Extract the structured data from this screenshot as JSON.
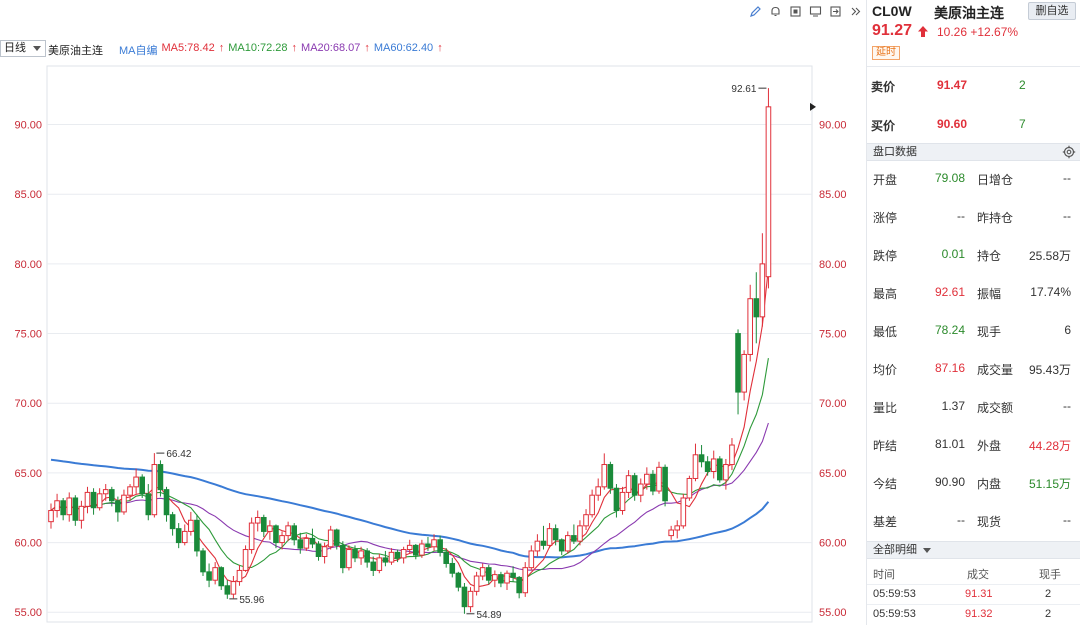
{
  "toolbar": {
    "icons": [
      "pen-icon",
      "bell-icon",
      "copy-icon",
      "screen-icon",
      "export-icon",
      "expand-icon"
    ]
  },
  "chart_header": {
    "period": "日线",
    "symbol": "美原油主连",
    "ma_mode": "MA自编",
    "ma5": "MA5:78.42",
    "ma10": "MA10:72.28",
    "ma20": "MA20:68.07",
    "ma60": "MA60:62.40"
  },
  "colors": {
    "up": "#e0303a",
    "down": "#1a8a3a",
    "ma5": "#e0303a",
    "ma10": "#2e9a3a",
    "ma20": "#8a3ab0",
    "ma60": "#3a7bd5",
    "axis_text": "#c82a36",
    "grid": "#e9ecf0"
  },
  "chart_data": {
    "type": "candlestick",
    "y_ticks": [
      "55.00",
      "60.00",
      "65.00",
      "70.00",
      "75.00",
      "80.00",
      "85.00",
      "90.00"
    ],
    "ylim": [
      54.3,
      94.2
    ],
    "annotations": {
      "high_label": "92.61",
      "peak_label": "66.42",
      "low_label_1": "55.96",
      "low_label_2": "54.89"
    },
    "ohlc": [
      [
        61.5,
        62.8,
        61.0,
        62.3
      ],
      [
        62.3,
        63.5,
        61.8,
        63.0
      ],
      [
        63.0,
        63.2,
        61.6,
        62.0
      ],
      [
        62.0,
        63.6,
        61.5,
        63.2
      ],
      [
        63.2,
        63.4,
        61.2,
        61.6
      ],
      [
        61.6,
        63.0,
        61.0,
        62.6
      ],
      [
        62.6,
        64.0,
        62.1,
        63.6
      ],
      [
        63.6,
        63.9,
        62.0,
        62.5
      ],
      [
        62.5,
        63.9,
        62.3,
        63.5
      ],
      [
        63.5,
        64.2,
        63.0,
        63.8
      ],
      [
        63.8,
        64.0,
        62.6,
        63.0
      ],
      [
        63.0,
        63.3,
        61.5,
        62.2
      ],
      [
        62.2,
        63.8,
        62.0,
        63.4
      ],
      [
        63.4,
        64.2,
        63.0,
        64.0
      ],
      [
        64.0,
        65.3,
        63.5,
        64.7
      ],
      [
        64.7,
        64.9,
        63.2,
        63.5
      ],
      [
        63.5,
        64.2,
        61.6,
        62.0
      ],
      [
        62.0,
        66.42,
        61.8,
        65.6
      ],
      [
        65.6,
        65.9,
        63.3,
        63.8
      ],
      [
        63.8,
        64.0,
        61.5,
        62.0
      ],
      [
        62.0,
        62.2,
        60.5,
        61.0
      ],
      [
        61.0,
        61.4,
        59.6,
        60.0
      ],
      [
        60.0,
        61.3,
        59.8,
        60.8
      ],
      [
        60.8,
        62.2,
        60.5,
        61.6
      ],
      [
        61.6,
        62.0,
        59.0,
        59.4
      ],
      [
        59.4,
        59.6,
        57.6,
        57.9
      ],
      [
        57.9,
        58.5,
        56.8,
        57.3
      ],
      [
        57.3,
        58.6,
        57.0,
        58.2
      ],
      [
        58.2,
        58.3,
        56.6,
        56.9
      ],
      [
        56.9,
        57.3,
        55.96,
        56.3
      ],
      [
        56.3,
        57.6,
        56.0,
        57.2
      ],
      [
        57.2,
        58.4,
        56.9,
        58.0
      ],
      [
        58.0,
        59.8,
        57.9,
        59.5
      ],
      [
        59.5,
        61.8,
        59.2,
        61.4
      ],
      [
        61.4,
        62.3,
        60.8,
        61.8
      ],
      [
        61.8,
        62.0,
        60.4,
        60.8
      ],
      [
        60.8,
        61.6,
        60.2,
        61.2
      ],
      [
        61.2,
        61.3,
        59.6,
        60.0
      ],
      [
        60.0,
        60.8,
        59.5,
        60.5
      ],
      [
        60.5,
        61.5,
        60.1,
        61.2
      ],
      [
        61.2,
        61.4,
        59.8,
        60.2
      ],
      [
        60.2,
        60.7,
        59.2,
        59.6
      ],
      [
        59.6,
        60.6,
        59.4,
        60.3
      ],
      [
        60.3,
        61.0,
        59.6,
        59.9
      ],
      [
        59.9,
        60.1,
        58.7,
        59.0
      ],
      [
        59.0,
        60.0,
        58.5,
        59.7
      ],
      [
        59.7,
        61.2,
        59.5,
        60.9
      ],
      [
        60.9,
        61.0,
        59.5,
        59.8
      ],
      [
        59.8,
        60.1,
        57.8,
        58.2
      ],
      [
        58.2,
        59.8,
        58.0,
        59.5
      ],
      [
        59.5,
        59.8,
        58.6,
        58.9
      ],
      [
        58.9,
        59.7,
        58.4,
        59.4
      ],
      [
        59.4,
        59.6,
        58.2,
        58.6
      ],
      [
        58.6,
        59.0,
        57.6,
        58.0
      ],
      [
        58.0,
        59.2,
        57.8,
        58.9
      ],
      [
        58.9,
        59.4,
        58.3,
        58.6
      ],
      [
        58.6,
        59.6,
        58.4,
        59.3
      ],
      [
        59.3,
        59.5,
        58.6,
        58.9
      ],
      [
        58.9,
        59.7,
        58.5,
        59.5
      ],
      [
        59.5,
        60.2,
        59.2,
        59.8
      ],
      [
        59.8,
        59.9,
        58.8,
        59.1
      ],
      [
        59.1,
        60.2,
        58.9,
        59.9
      ],
      [
        59.9,
        60.4,
        59.4,
        59.7
      ],
      [
        59.7,
        60.6,
        59.4,
        60.2
      ],
      [
        60.2,
        60.5,
        59.0,
        59.3
      ],
      [
        59.3,
        59.6,
        58.2,
        58.5
      ],
      [
        58.5,
        58.9,
        57.5,
        57.8
      ],
      [
        57.8,
        57.9,
        56.5,
        56.8
      ],
      [
        56.8,
        57.1,
        54.89,
        55.4
      ],
      [
        55.4,
        56.8,
        55.0,
        56.5
      ],
      [
        56.5,
        57.9,
        56.2,
        57.6
      ],
      [
        57.6,
        58.5,
        57.3,
        58.2
      ],
      [
        58.2,
        58.4,
        57.0,
        57.3
      ],
      [
        57.3,
        58.0,
        56.8,
        57.7
      ],
      [
        57.7,
        57.9,
        56.8,
        57.1
      ],
      [
        57.1,
        58.0,
        56.6,
        57.8
      ],
      [
        57.8,
        58.3,
        57.2,
        57.5
      ],
      [
        57.5,
        57.6,
        56.0,
        56.4
      ],
      [
        56.4,
        58.6,
        56.1,
        58.2
      ],
      [
        58.2,
        59.8,
        58.0,
        59.4
      ],
      [
        59.4,
        60.6,
        59.0,
        60.1
      ],
      [
        60.1,
        61.2,
        59.5,
        59.8
      ],
      [
        59.8,
        61.4,
        59.6,
        61.0
      ],
      [
        61.0,
        61.3,
        59.8,
        60.2
      ],
      [
        60.2,
        60.3,
        59.1,
        59.4
      ],
      [
        59.4,
        60.8,
        59.2,
        60.5
      ],
      [
        60.5,
        61.3,
        59.9,
        60.1
      ],
      [
        60.1,
        61.6,
        59.8,
        61.2
      ],
      [
        61.2,
        62.4,
        60.9,
        62.0
      ],
      [
        62.0,
        63.8,
        61.8,
        63.4
      ],
      [
        63.4,
        64.6,
        63.0,
        64.0
      ],
      [
        64.0,
        66.4,
        63.8,
        65.6
      ],
      [
        65.6,
        65.8,
        63.5,
        63.9
      ],
      [
        63.9,
        64.2,
        61.8,
        62.3
      ],
      [
        62.3,
        64.0,
        62.0,
        63.6
      ],
      [
        63.6,
        65.2,
        63.2,
        64.8
      ],
      [
        64.8,
        65.0,
        63.0,
        63.4
      ],
      [
        63.4,
        64.6,
        62.9,
        64.2
      ],
      [
        64.2,
        65.4,
        63.8,
        64.9
      ],
      [
        64.9,
        65.2,
        63.4,
        63.7
      ],
      [
        63.7,
        65.8,
        63.5,
        65.4
      ],
      [
        65.4,
        65.6,
        62.6,
        63.0
      ],
      [
        60.5,
        61.2,
        60.2,
        60.9
      ],
      [
        60.9,
        61.6,
        60.3,
        61.2
      ],
      [
        61.2,
        63.5,
        61.0,
        63.2
      ],
      [
        63.2,
        64.8,
        63.0,
        64.6
      ],
      [
        64.6,
        67.1,
        64.4,
        66.3
      ],
      [
        66.3,
        67.0,
        65.4,
        65.8
      ],
      [
        65.8,
        66.2,
        64.8,
        65.1
      ],
      [
        65.1,
        66.6,
        64.6,
        66.0
      ],
      [
        66.0,
        66.2,
        64.3,
        64.5
      ],
      [
        64.5,
        66.0,
        63.8,
        65.6
      ],
      [
        65.6,
        67.5,
        65.2,
        67.0
      ],
      [
        75.0,
        75.3,
        69.2,
        70.8
      ],
      [
        70.8,
        73.8,
        70.2,
        73.5
      ],
      [
        73.5,
        78.5,
        73.0,
        77.5
      ],
      [
        77.5,
        79.4,
        74.3,
        76.2
      ],
      [
        76.2,
        82.2,
        75.5,
        80.0
      ],
      [
        79.08,
        92.61,
        78.24,
        91.27
      ]
    ]
  },
  "side": {
    "code": "CL0W",
    "name": "美原油主连",
    "watch_btn": "删自选",
    "price": "91.27",
    "change": "10.26 +12.67%",
    "delay_tag": "延时",
    "ask_label": "卖价",
    "ask_price": "91.47",
    "ask_qty": "2",
    "bid_label": "买价",
    "bid_price": "90.60",
    "bid_qty": "7",
    "section_title": "盘口数据",
    "stats": [
      {
        "k1": "开盘",
        "v1": "79.08",
        "c1": "green",
        "k2": "日增仓",
        "v2": "--",
        "c2": "dark"
      },
      {
        "k1": "涨停",
        "v1": "--",
        "c1": "dark",
        "k2": "昨持仓",
        "v2": "--",
        "c2": "dark"
      },
      {
        "k1": "跌停",
        "v1": "0.01",
        "c1": "green",
        "k2": "持仓",
        "v2": "25.58万",
        "c2": "dark"
      },
      {
        "k1": "最高",
        "v1": "92.61",
        "c1": "red",
        "k2": "振幅",
        "v2": "17.74%",
        "c2": "dark"
      },
      {
        "k1": "最低",
        "v1": "78.24",
        "c1": "green",
        "k2": "现手",
        "v2": "6",
        "c2": "dark"
      },
      {
        "k1": "均价",
        "v1": "87.16",
        "c1": "red",
        "k2": "成交量",
        "v2": "95.43万",
        "c2": "dark"
      },
      {
        "k1": "量比",
        "v1": "1.37",
        "c1": "dark",
        "k2": "成交额",
        "v2": "--",
        "c2": "dark"
      },
      {
        "k1": "昨结",
        "v1": "81.01",
        "c1": "dark",
        "k2": "外盘",
        "v2": "44.28万",
        "c2": "red"
      },
      {
        "k1": "今结",
        "v1": "90.90",
        "c1": "dark",
        "k2": "内盘",
        "v2": "51.15万",
        "c2": "green"
      },
      {
        "k1": "基差",
        "v1": "--",
        "c1": "dark",
        "k2": "现货",
        "v2": "--",
        "c2": "dark"
      }
    ],
    "detail_title": "全部明细",
    "detail_headers": [
      "时间",
      "成交",
      "现手"
    ],
    "ticks": [
      {
        "time": "05:59:53",
        "price": "91.31",
        "qty": "2"
      },
      {
        "time": "05:59:53",
        "price": "91.32",
        "qty": "2"
      }
    ]
  }
}
